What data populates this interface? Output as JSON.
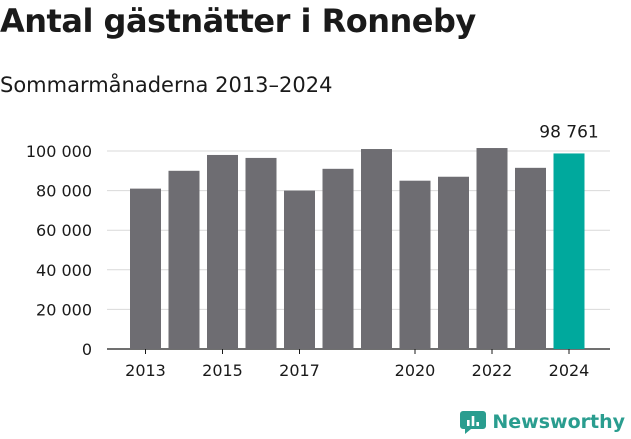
{
  "title": "Antal gästnätter i Ronneby",
  "subtitle": "Sommarmånaderna 2013–2024",
  "brand": {
    "name": "Newsworthy",
    "icon": "newsworthy-logo-icon",
    "color": "#2a9d8f"
  },
  "chart_data": {
    "type": "bar",
    "categories": [
      "2013",
      "2014",
      "2015",
      "2016",
      "2017",
      "2018",
      "2019",
      "2020",
      "2021",
      "2022",
      "2023",
      "2024"
    ],
    "values": [
      81000,
      90000,
      98000,
      96500,
      80000,
      91000,
      101000,
      85000,
      87000,
      101500,
      91500,
      98761
    ],
    "x_tick_labels": [
      "2013",
      "2015",
      "2017",
      "2020",
      "2022",
      "2024"
    ],
    "y_ticks": [
      0,
      20000,
      40000,
      60000,
      80000,
      100000
    ],
    "y_tick_labels": [
      "0",
      "20 000",
      "40 000",
      "60 000",
      "80 000",
      "100 000"
    ],
    "ylim": [
      0,
      100000
    ],
    "highlight": {
      "category": "2024",
      "label": "98 761"
    },
    "xlabel": "",
    "ylabel": "",
    "grid": true,
    "colors": {
      "bar": "#6e6d72",
      "highlight": "#00a99d",
      "grid": "#d9d9d9"
    }
  }
}
